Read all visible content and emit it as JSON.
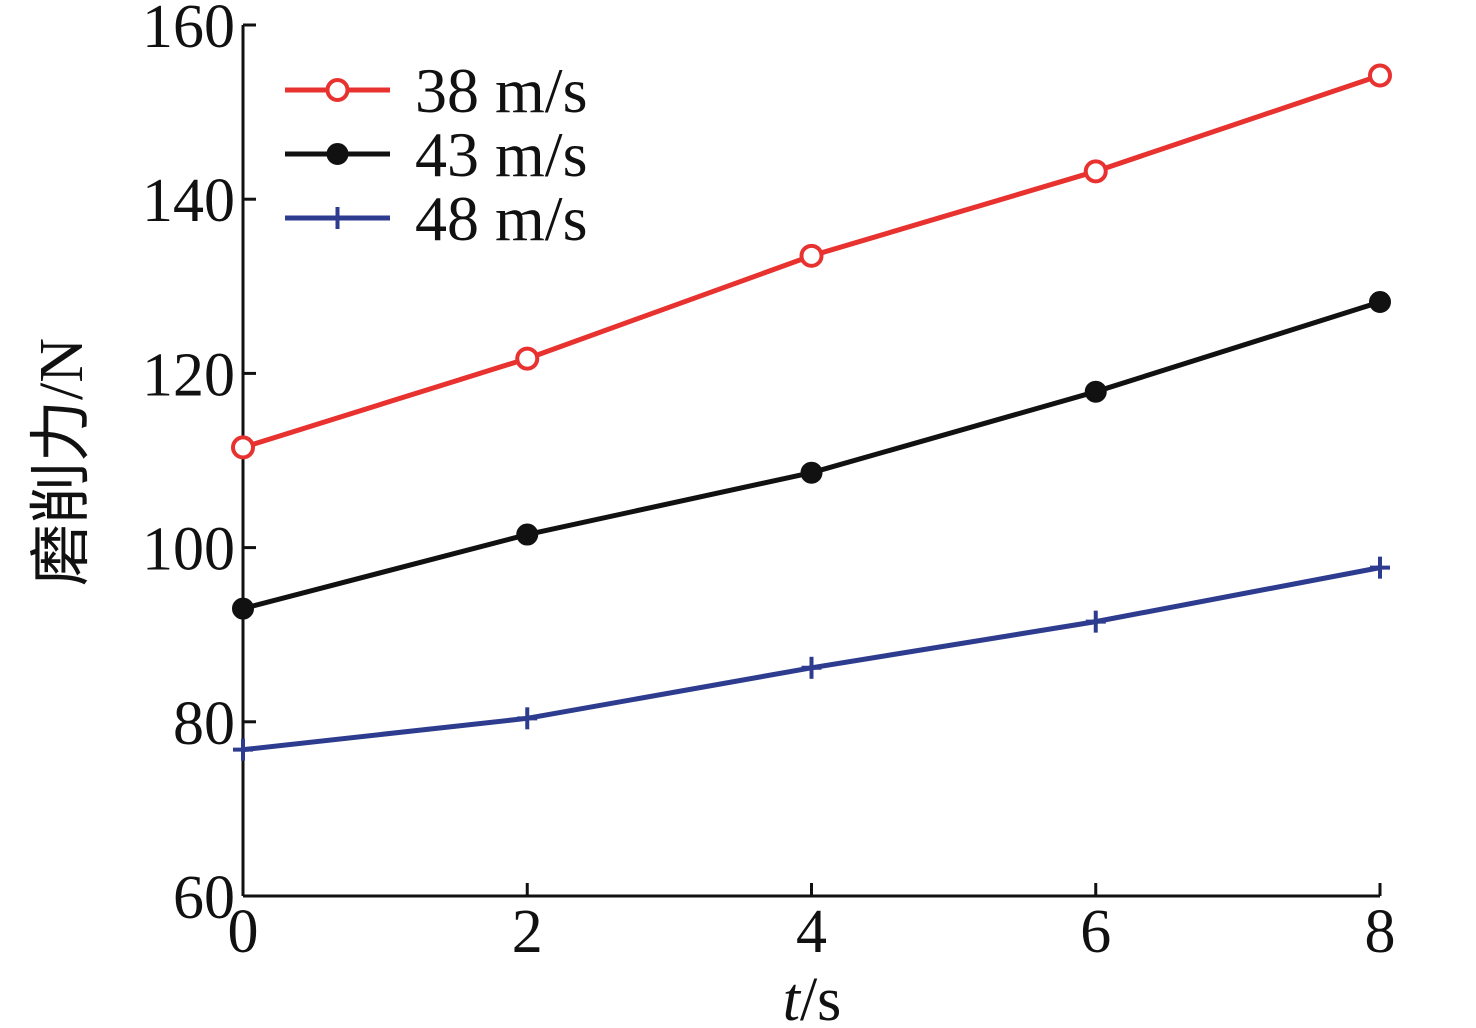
{
  "chart_data": {
    "type": "line",
    "title": "",
    "xlabel": {
      "italic": "t",
      "rest": "/s"
    },
    "ylabel": "磨削力/N",
    "xlim": [
      0,
      8
    ],
    "ylim": [
      60,
      160
    ],
    "xticks": [
      "0",
      "2",
      "4",
      "6",
      "8"
    ],
    "yticks": [
      "60",
      "80",
      "100",
      "120",
      "140",
      "160"
    ],
    "grid": false,
    "legend_position": "top-left",
    "x": [
      0,
      2,
      4,
      6,
      8
    ],
    "series": [
      {
        "name": "38 m/s",
        "values": [
          111.5,
          121.7,
          133.5,
          143.2,
          154.2
        ],
        "color": "#e8322f",
        "marker": "open-circle"
      },
      {
        "name": "43 m/s",
        "values": [
          93.0,
          101.5,
          108.6,
          117.9,
          128.2
        ],
        "color": "#111111",
        "marker": "filled-circle"
      },
      {
        "name": "48 m/s",
        "values": [
          76.8,
          80.4,
          86.2,
          91.5,
          97.7
        ],
        "color": "#2e3c8f",
        "marker": "plus"
      }
    ]
  }
}
